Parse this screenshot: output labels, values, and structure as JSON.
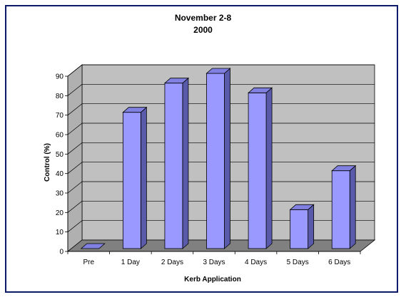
{
  "chart_data": {
    "type": "bar",
    "title_line1": "November 2-8",
    "title_line2": "2000",
    "xlabel": "Kerb Application",
    "ylabel": "Control (%)",
    "ylim": [
      0,
      90
    ],
    "yticks": [
      "0",
      "10",
      "20",
      "30",
      "40",
      "50",
      "60",
      "70",
      "80",
      "90"
    ],
    "grid": true,
    "style": "3d-column",
    "categories": [
      "Pre",
      "1 Day",
      "2 Days",
      "3 Days",
      "4 Days",
      "5 Days",
      "6 Days"
    ],
    "values": [
      0,
      70,
      85,
      90,
      80,
      20,
      40
    ],
    "colors": {
      "bar_front": "#9999ff",
      "bar_side": "#5a5aaa",
      "bar_top": "#8080e0",
      "back_wall": "#c0c0c0",
      "floor": "#808080",
      "frame_border": "#0b1a6b"
    }
  }
}
